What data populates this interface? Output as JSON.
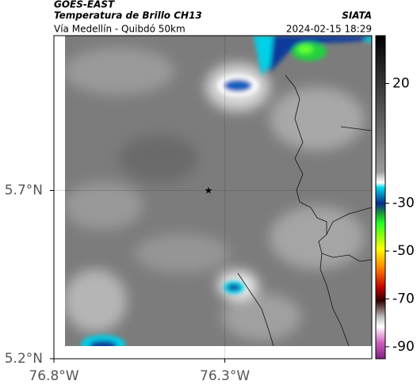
{
  "header": {
    "source": "GOES-EAST",
    "product": "Temperatura de Brillo CH13",
    "route": "Vía Medellín - Quibdó 50km",
    "agency": "SIATA",
    "datetime": "2024-02-15 18:29"
  },
  "map": {
    "xlim": [
      -76.8,
      -75.87
    ],
    "ylim": [
      5.2,
      6.16
    ],
    "xticks": [
      {
        "value": -76.8,
        "label": "76.8°W"
      },
      {
        "value": -76.3,
        "label": "76.3°W"
      }
    ],
    "yticks": [
      {
        "value": 5.2,
        "label": "5.2°N"
      },
      {
        "value": 5.7,
        "label": "5.7°N"
      }
    ]
  },
  "colorbar": {
    "lim": [
      40,
      -95
    ],
    "ticks": [
      20,
      -30,
      -50,
      -70,
      -90
    ]
  }
}
